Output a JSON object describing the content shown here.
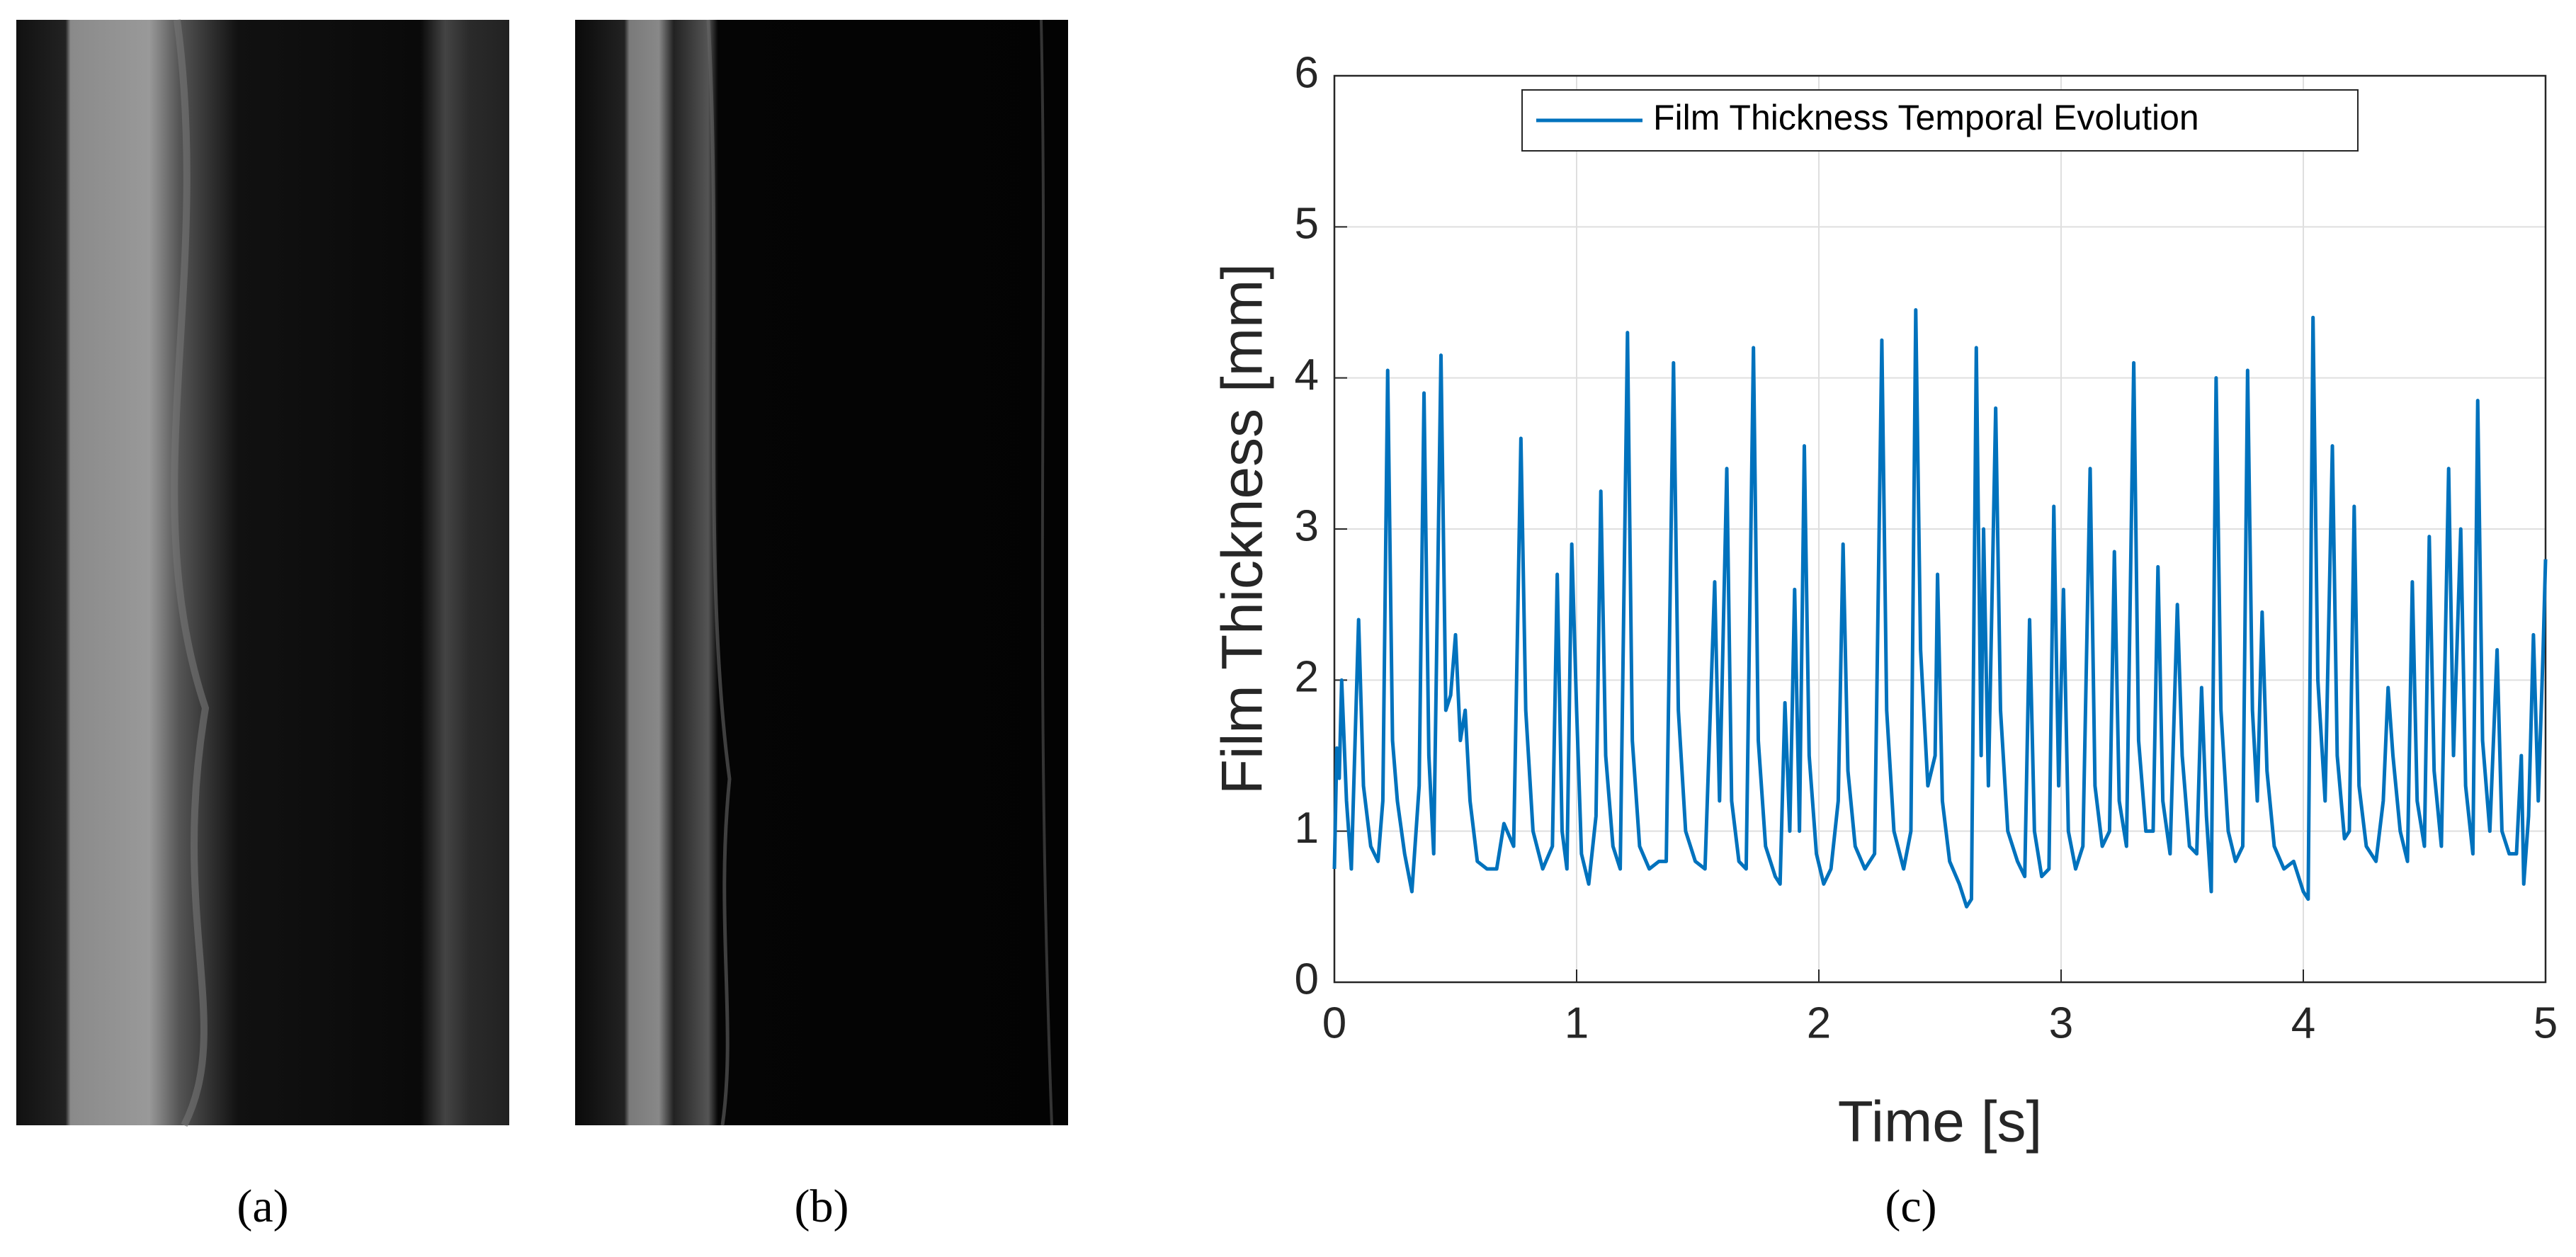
{
  "panels": [
    {
      "label": "(a)"
    },
    {
      "label": "(b)"
    }
  ],
  "chart_data": {
    "type": "line",
    "panel_label": "(c)",
    "x_label": "Time [s]",
    "y_label": "Film Thickness [mm]",
    "xlim": [
      0,
      5
    ],
    "xticks": [
      0,
      1,
      2,
      3,
      4,
      5
    ],
    "ylim": [
      0,
      6
    ],
    "yticks": [
      0,
      1,
      2,
      3,
      4,
      5,
      6
    ],
    "grid": true,
    "legend": "top",
    "x": [
      0,
      0.01,
      0.02,
      0.03,
      0.05,
      0.07,
      0.1,
      0.12,
      0.15,
      0.18,
      0.2,
      0.22,
      0.24,
      0.26,
      0.29,
      0.32,
      0.35,
      0.37,
      0.39,
      0.41,
      0.44,
      0.46,
      0.48,
      0.5,
      0.52,
      0.54,
      0.56,
      0.59,
      0.63,
      0.67,
      0.7,
      0.74,
      0.77,
      0.79,
      0.82,
      0.86,
      0.9,
      0.92,
      0.94,
      0.96,
      0.98,
      1.0,
      1.02,
      1.05,
      1.08,
      1.1,
      1.12,
      1.15,
      1.18,
      1.21,
      1.23,
      1.26,
      1.3,
      1.34,
      1.37,
      1.4,
      1.42,
      1.45,
      1.49,
      1.53,
      1.57,
      1.59,
      1.62,
      1.64,
      1.67,
      1.7,
      1.73,
      1.75,
      1.78,
      1.82,
      1.84,
      1.86,
      1.88,
      1.9,
      1.92,
      1.94,
      1.96,
      1.99,
      2.02,
      2.05,
      2.08,
      2.1,
      2.12,
      2.15,
      2.19,
      2.23,
      2.26,
      2.28,
      2.31,
      2.35,
      2.38,
      2.4,
      2.42,
      2.45,
      2.48,
      2.49,
      2.51,
      2.54,
      2.58,
      2.61,
      2.63,
      2.65,
      2.67,
      2.68,
      2.7,
      2.73,
      2.75,
      2.78,
      2.82,
      2.85,
      2.87,
      2.89,
      2.92,
      2.95,
      2.97,
      2.99,
      3.01,
      3.03,
      3.06,
      3.09,
      3.12,
      3.14,
      3.17,
      3.2,
      3.22,
      3.24,
      3.27,
      3.3,
      3.32,
      3.35,
      3.38,
      3.4,
      3.42,
      3.45,
      3.48,
      3.5,
      3.53,
      3.56,
      3.58,
      3.6,
      3.62,
      3.64,
      3.66,
      3.69,
      3.72,
      3.75,
      3.77,
      3.79,
      3.81,
      3.83,
      3.85,
      3.88,
      3.92,
      3.96,
      4.0,
      4.02,
      4.04,
      4.06,
      4.09,
      4.12,
      4.14,
      4.17,
      4.19,
      4.21,
      4.23,
      4.26,
      4.3,
      4.33,
      4.35,
      4.37,
      4.4,
      4.43,
      4.45,
      4.47,
      4.5,
      4.52,
      4.54,
      4.57,
      4.6,
      4.62,
      4.65,
      4.67,
      4.7,
      4.72,
      4.74,
      4.77,
      4.8,
      4.82,
      4.85,
      4.88,
      4.9,
      4.91,
      4.93,
      4.95,
      4.97,
      4.99,
      5.0
    ],
    "series": [
      {
        "name": "Film Thickness Temporal Evolution",
        "color": "#0072BD",
        "values": [
          0.75,
          1.55,
          1.35,
          2.0,
          1.2,
          0.75,
          2.4,
          1.3,
          0.9,
          0.8,
          1.2,
          4.05,
          1.6,
          1.2,
          0.85,
          0.6,
          1.3,
          3.9,
          1.5,
          0.85,
          4.15,
          1.8,
          1.9,
          2.3,
          1.6,
          1.8,
          1.2,
          0.8,
          0.75,
          0.75,
          1.05,
          0.9,
          3.6,
          1.8,
          1.0,
          0.75,
          0.9,
          2.7,
          1.0,
          0.75,
          2.9,
          1.8,
          0.85,
          0.65,
          1.1,
          3.25,
          1.5,
          0.9,
          0.75,
          4.3,
          1.6,
          0.9,
          0.75,
          0.8,
          0.8,
          4.1,
          1.8,
          1.0,
          0.8,
          0.75,
          2.65,
          1.2,
          3.4,
          1.2,
          0.8,
          0.75,
          4.2,
          1.6,
          0.9,
          0.7,
          0.65,
          1.85,
          1.0,
          2.6,
          1.0,
          3.55,
          1.5,
          0.85,
          0.65,
          0.75,
          1.2,
          2.9,
          1.4,
          0.9,
          0.75,
          0.85,
          4.25,
          1.8,
          1.0,
          0.75,
          1.0,
          4.45,
          2.2,
          1.3,
          1.5,
          2.7,
          1.2,
          0.8,
          0.65,
          0.5,
          0.55,
          4.2,
          1.5,
          3.0,
          1.3,
          3.8,
          1.8,
          1.0,
          0.8,
          0.7,
          2.4,
          1.0,
          0.7,
          0.75,
          3.15,
          1.3,
          2.6,
          1.0,
          0.75,
          0.9,
          3.4,
          1.3,
          0.9,
          1.0,
          2.85,
          1.2,
          0.9,
          4.1,
          1.6,
          1.0,
          1.0,
          2.75,
          1.2,
          0.85,
          2.5,
          1.5,
          0.9,
          0.85,
          1.95,
          1.1,
          0.6,
          4.0,
          1.8,
          1.0,
          0.8,
          0.9,
          4.05,
          1.8,
          1.2,
          2.45,
          1.4,
          0.9,
          0.75,
          0.8,
          0.6,
          0.55,
          4.4,
          2.0,
          1.2,
          3.55,
          1.5,
          0.95,
          1.0,
          3.15,
          1.3,
          0.9,
          0.8,
          1.2,
          1.95,
          1.5,
          1.0,
          0.8,
          2.65,
          1.2,
          0.9,
          2.95,
          1.4,
          0.9,
          3.4,
          1.5,
          3.0,
          1.3,
          0.85,
          3.85,
          1.6,
          1.0,
          2.2,
          1.0,
          0.85,
          0.85,
          1.5,
          0.65,
          1.1,
          2.3,
          1.2,
          2.2,
          2.8
        ]
      }
    ]
  }
}
